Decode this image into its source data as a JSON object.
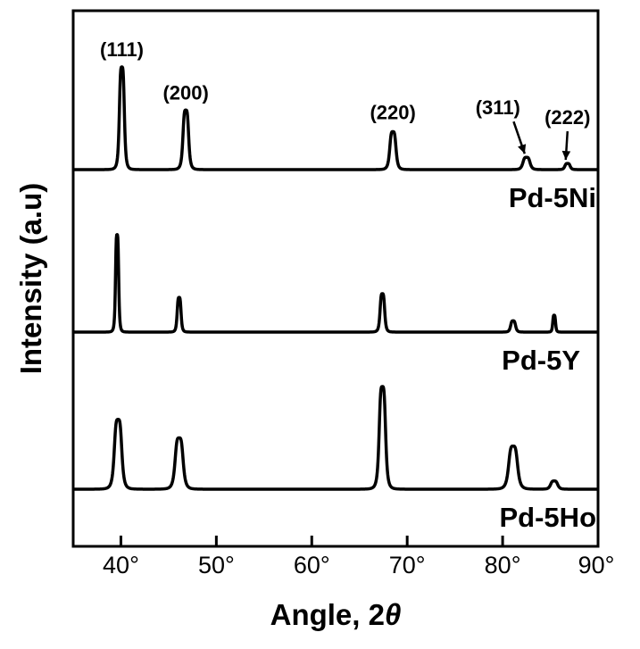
{
  "chart_data": {
    "type": "line",
    "title": "",
    "xlabel_text": "Angle, 2",
    "xlabel_symbol": "θ",
    "ylabel": "Intensity (a.u)",
    "xlim": [
      35,
      90
    ],
    "x_ticks": [
      {
        "value": 40,
        "label": "40°"
      },
      {
        "value": 50,
        "label": "50°"
      },
      {
        "value": 60,
        "label": "60°"
      },
      {
        "value": 70,
        "label": "70°"
      },
      {
        "value": 80,
        "label": "80°"
      },
      {
        "value": 90,
        "label": "90°"
      }
    ],
    "y_ticks_shown": false,
    "grid": false,
    "legend": "none",
    "series": [
      {
        "name": "Pd-5Ni",
        "baseline": 0,
        "peaks": [
          {
            "x": 40.1,
            "height": 100,
            "width": 0.28
          },
          {
            "x": 46.8,
            "height": 58,
            "width": 0.32
          },
          {
            "x": 68.5,
            "height": 37,
            "width": 0.35
          },
          {
            "x": 82.5,
            "height": 12,
            "width": 0.4
          },
          {
            "x": 86.8,
            "height": 6,
            "width": 0.3
          }
        ]
      },
      {
        "name": "Pd-5Y",
        "baseline": 0,
        "peaks": [
          {
            "x": 39.6,
            "height": 104,
            "width": 0.18
          },
          {
            "x": 46.1,
            "height": 37,
            "width": 0.22
          },
          {
            "x": 67.4,
            "height": 41,
            "width": 0.26
          },
          {
            "x": 81.1,
            "height": 12,
            "width": 0.28
          },
          {
            "x": 85.4,
            "height": 18,
            "width": 0.16
          }
        ]
      },
      {
        "name": "Pd-5Ho",
        "baseline": 0,
        "peaks": [
          {
            "x": 39.7,
            "height": 68,
            "width": 0.42
          },
          {
            "x": 46.1,
            "height": 50,
            "width": 0.45
          },
          {
            "x": 67.4,
            "height": 100,
            "width": 0.36
          },
          {
            "x": 81.1,
            "height": 42,
            "width": 0.5
          },
          {
            "x": 85.4,
            "height": 8,
            "width": 0.4
          }
        ]
      }
    ],
    "annotations": [
      {
        "text": "(111)",
        "series": "Pd-5Ni",
        "x": 40.1
      },
      {
        "text": "(200)",
        "series": "Pd-5Ni",
        "x": 46.8
      },
      {
        "text": "(220)",
        "series": "Pd-5Ni",
        "x": 68.5
      },
      {
        "text": "(311)",
        "series": "Pd-5Ni",
        "x": 82.5,
        "arrow": true
      },
      {
        "text": "(222)",
        "series": "Pd-5Ni",
        "x": 86.8,
        "arrow": true
      }
    ],
    "line_color": "#000000"
  }
}
